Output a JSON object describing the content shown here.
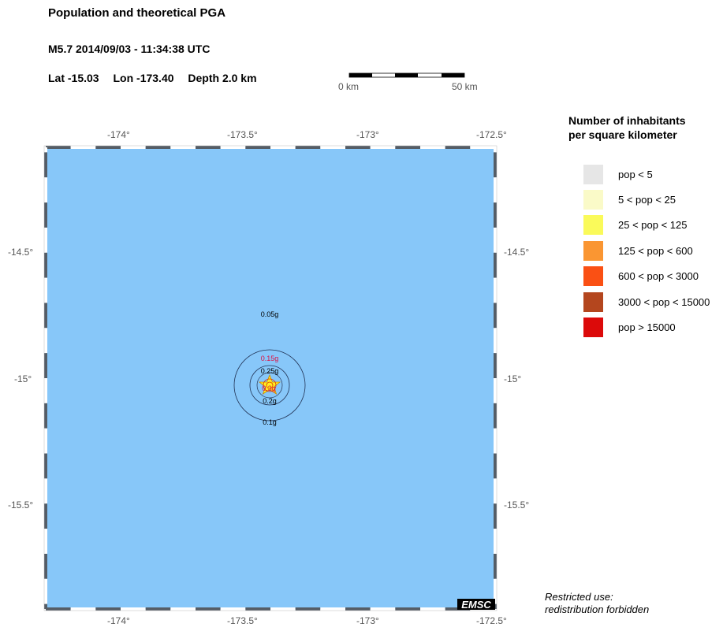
{
  "header": {
    "title": "Population and theoretical PGA",
    "event": "M5.7  2014/09/03 - 11:34:38 UTC",
    "lat": "Lat -15.03",
    "lon": "Lon -173.40",
    "depth": "Depth  2.0 km"
  },
  "scale_bar": {
    "start_label": "0 km",
    "end_label": "50 km"
  },
  "map": {
    "ocean_color": "#87c7f9",
    "lon_range": [
      -174.3,
      -172.5
    ],
    "lat_range": [
      -15.92,
      -14.08
    ],
    "lon_ticks": [
      "-174°",
      "-173.5°",
      "-173°",
      "-172.5°"
    ],
    "lat_ticks": [
      "-14.5°",
      "-15°",
      "-15.5°"
    ],
    "epicenter_icon": "star-icon",
    "pga_labels": [
      {
        "text": "0.05g",
        "color": "#000000"
      },
      {
        "text": "0.15g",
        "color": "#dd1144"
      },
      {
        "text": "0.25g",
        "color": "#000000"
      },
      {
        "text": "0.3g",
        "color": "#dd1144"
      },
      {
        "text": "0.2g",
        "color": "#000000"
      },
      {
        "text": "0.1g",
        "color": "#000000"
      }
    ],
    "logo": "EMSC"
  },
  "legend": {
    "title_line1": "Number of inhabitants",
    "title_line2": "per square kilometer",
    "items": [
      {
        "label": "pop < 5",
        "color": "#e6e6e6"
      },
      {
        "label": "5 < pop < 25",
        "color": "#fafac8"
      },
      {
        "label": "25 < pop < 125",
        "color": "#fafa5a"
      },
      {
        "label": "125 < pop < 600",
        "color": "#fa9632"
      },
      {
        "label": "600 < pop < 3000",
        "color": "#fa5014"
      },
      {
        "label": "3000 < pop < 15000",
        "color": "#b4461e"
      },
      {
        "label": "pop > 15000",
        "color": "#dc0a0a"
      }
    ]
  },
  "footer": {
    "line1": "Restricted use:",
    "line2": "redistribution forbidden"
  }
}
